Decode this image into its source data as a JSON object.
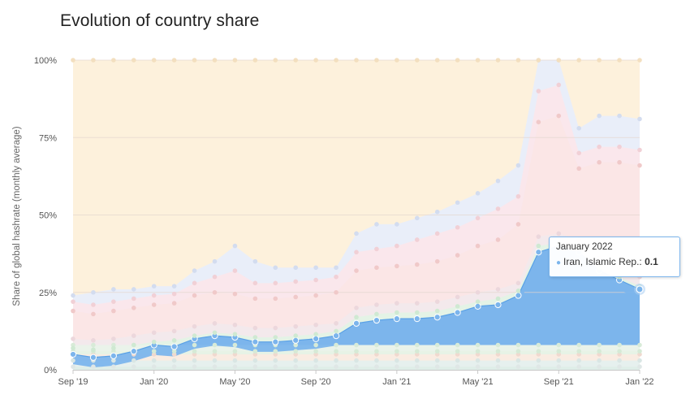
{
  "page": {
    "title": "Evolution of country share"
  },
  "tooltip": {
    "date": "January 2022",
    "series": "Iran, Islamic Rep.",
    "value_text": "0.1",
    "bullet": "●"
  },
  "colors": {
    "background_band": "#fdf1dc",
    "upper_band": "#e9eef9",
    "middle_band": "#fbe6e6",
    "highlight_band": "#7cb5ec",
    "grid": "#e6e6e6"
  },
  "chart_data": {
    "type": "area",
    "stacking": "percent",
    "ylabel": "Share of global hashrate (monthly average)",
    "ylim": [
      0,
      100
    ],
    "y_ticks": [
      {
        "value": 0,
        "label": "0%"
      },
      {
        "value": 25,
        "label": "25%"
      },
      {
        "value": 50,
        "label": "50%"
      },
      {
        "value": 75,
        "label": "75%"
      },
      {
        "value": 100,
        "label": "100%"
      }
    ],
    "x_ticks": [
      {
        "index": 0,
        "label": "Sep '19"
      },
      {
        "index": 4,
        "label": "Jan '20"
      },
      {
        "index": 8,
        "label": "May '20"
      },
      {
        "index": 12,
        "label": "Sep '20"
      },
      {
        "index": 16,
        "label": "Jan '21"
      },
      {
        "index": 20,
        "label": "May '21"
      },
      {
        "index": 24,
        "label": "Sep '21"
      },
      {
        "index": 28,
        "label": "Jan '22"
      }
    ],
    "x": [
      "Sep 2019",
      "Oct 2019",
      "Nov 2019",
      "Dec 2019",
      "Jan 2020",
      "Feb 2020",
      "Mar 2020",
      "Apr 2020",
      "May 2020",
      "Jun 2020",
      "Jul 2020",
      "Aug 2020",
      "Sep 2020",
      "Oct 2020",
      "Nov 2020",
      "Dec 2020",
      "Jan 2021",
      "Feb 2021",
      "Mar 2021",
      "Apr 2021",
      "May 2021",
      "Jun 2021",
      "Jul 2021",
      "Aug 2021",
      "Sep 2021",
      "Oct 2021",
      "Nov 2021",
      "Dec 2021",
      "Jan 2022"
    ],
    "series_cumulative": [
      {
        "values": [
          1,
          1,
          1,
          1,
          1,
          1,
          1,
          1,
          1,
          1,
          1,
          1,
          1,
          1,
          1,
          1,
          1,
          1,
          1,
          1,
          1,
          1,
          1,
          1,
          1,
          1,
          1,
          1,
          1
        ]
      },
      {
        "values": [
          3,
          3,
          3,
          3,
          3,
          3,
          3,
          3,
          3,
          3,
          3,
          3,
          3,
          3,
          3,
          3,
          3,
          3,
          3,
          3,
          3,
          3,
          3,
          3,
          3,
          3,
          3,
          3,
          3
        ]
      },
      {
        "values": [
          5,
          5,
          5,
          5,
          5,
          5,
          5,
          5,
          5,
          5,
          5,
          5,
          5,
          5,
          5,
          5,
          5,
          5,
          5,
          5,
          5,
          5,
          5,
          5,
          5,
          5,
          5,
          5,
          5
        ]
      },
      {
        "values": [
          6,
          6,
          6,
          6,
          6,
          6,
          6,
          6,
          6,
          6,
          6,
          6,
          6,
          6,
          6,
          6,
          6,
          6,
          6,
          6,
          6,
          6,
          6,
          6,
          6,
          6,
          6,
          6,
          6
        ]
      },
      {
        "values": [
          8,
          8,
          8,
          8,
          8,
          8,
          8,
          8,
          8,
          8,
          8,
          8,
          8,
          8,
          8,
          8,
          8,
          8,
          8,
          8,
          8,
          8,
          8,
          8,
          8,
          8,
          8,
          8,
          8
        ]
      },
      {
        "values": [
          5,
          4,
          4.5,
          6,
          8,
          7.5,
          10,
          11,
          10.5,
          9,
          9,
          9.5,
          10,
          11,
          15,
          16,
          16.5,
          16.5,
          17,
          18.5,
          20.5,
          21,
          24,
          38,
          40,
          38,
          32,
          29,
          26
        ]
      },
      {
        "values": [
          7,
          6.5,
          7,
          8,
          9,
          9.5,
          11,
          12,
          11.5,
          10.5,
          10.5,
          11,
          11.5,
          12.5,
          17,
          18,
          18.5,
          18.5,
          19,
          20.5,
          22,
          23,
          25.5,
          40,
          41,
          39,
          33,
          30,
          27
        ]
      },
      {
        "values": [
          10,
          9.5,
          10,
          11,
          12,
          12.5,
          14,
          15,
          14.5,
          13.5,
          13.5,
          14,
          14.5,
          15,
          20,
          21,
          21.5,
          21.5,
          22,
          23.5,
          25,
          26,
          28,
          43,
          44,
          42,
          36,
          33,
          30
        ]
      },
      {
        "values": [
          19,
          18,
          19,
          20,
          21,
          21.5,
          24,
          25,
          24.5,
          23,
          23,
          23.5,
          24,
          25,
          32,
          33,
          33.5,
          34,
          35,
          37,
          40,
          42,
          47,
          80,
          82,
          65,
          67,
          67,
          66
        ]
      },
      {
        "values": [
          22,
          21,
          22,
          23,
          24,
          24.5,
          28,
          30,
          32,
          28,
          28,
          28.5,
          29,
          30,
          38,
          39,
          40,
          42,
          44,
          46,
          49,
          52,
          56,
          90,
          92,
          70,
          72,
          72,
          71
        ]
      },
      {
        "values": [
          24,
          25,
          26,
          26,
          27,
          27,
          32,
          35,
          40,
          35,
          33,
          33,
          33,
          33,
          44,
          47,
          47,
          49,
          51,
          54,
          57,
          61,
          66,
          100,
          100,
          78,
          82,
          82,
          81
        ]
      },
      {
        "values": [
          100,
          100,
          100,
          100,
          100,
          100,
          100,
          100,
          100,
          100,
          100,
          100,
          100,
          100,
          100,
          100,
          100,
          100,
          100,
          100,
          100,
          100,
          100,
          100,
          100,
          100,
          100,
          100,
          100
        ]
      }
    ],
    "highlight_series": 5,
    "tooltip_point_index": 28,
    "grid": true,
    "legend": "none"
  }
}
